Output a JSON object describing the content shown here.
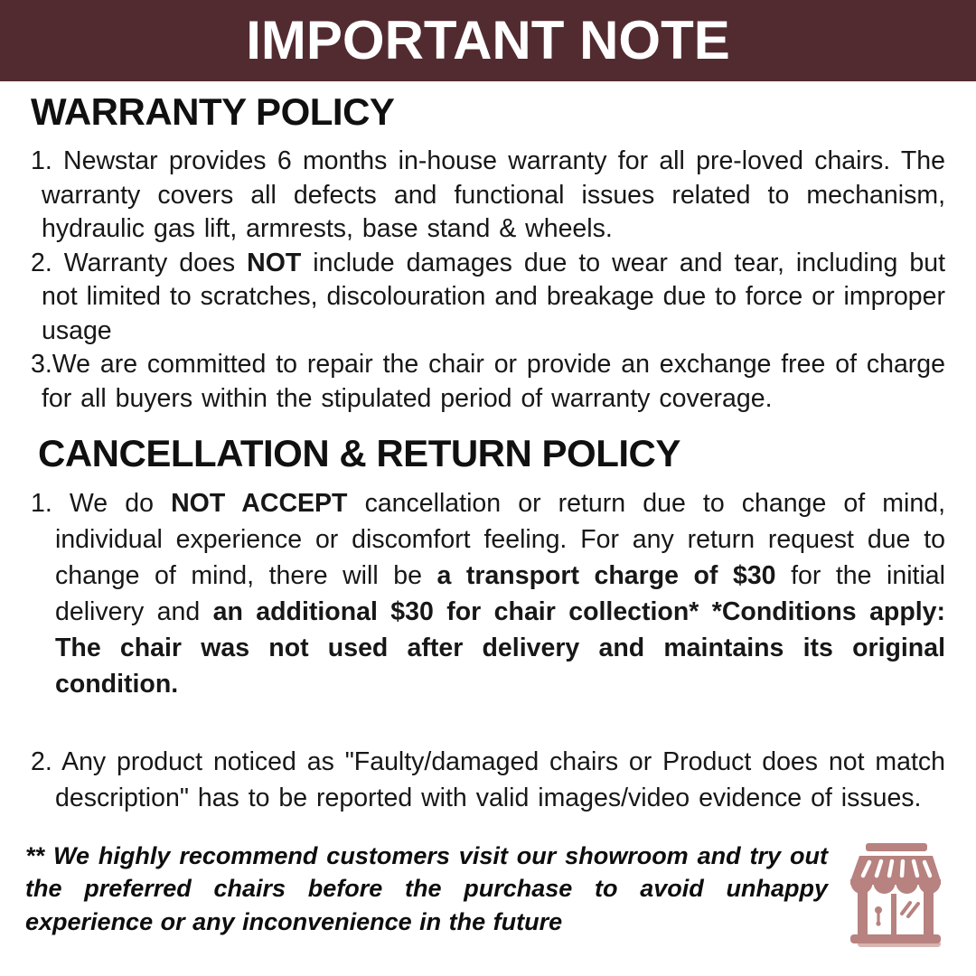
{
  "colors": {
    "banner_bg": "#522b30",
    "banner_text": "#ffffff",
    "body_text": "#171717",
    "icon_rose": "#b7827f",
    "icon_rose_light": "#d9b4b0"
  },
  "banner": {
    "title": "IMPORTANT NOTE"
  },
  "warranty": {
    "heading": "WARRANTY POLICY",
    "items": [
      {
        "number": "1. ",
        "segments": [
          {
            "text": "Newstar provides 6 months in-house warranty for all pre-loved chairs. The warranty covers all defects and functional issues related to mechanism, hydraulic gas lift, armrests, base stand & wheels.",
            "bold": false
          }
        ]
      },
      {
        "number": "2. ",
        "segments": [
          {
            "text": "Warranty does ",
            "bold": false
          },
          {
            "text": "NOT",
            "bold": true
          },
          {
            "text": " include damages due to wear and tear, including but not limited to scratches, discolouration and breakage due to force or improper usage",
            "bold": false
          }
        ]
      },
      {
        "number": "3.",
        "segments": [
          {
            "text": "We are committed to repair the chair or provide an exchange free of charge for all buyers within the stipulated period of warranty coverage.",
            "bold": false
          }
        ]
      }
    ]
  },
  "cancellation": {
    "heading": "CANCELLATION & RETURN POLICY",
    "items": [
      {
        "number": "1. ",
        "segments": [
          {
            "text": "We do ",
            "bold": false
          },
          {
            "text": "NOT ACCEPT",
            "bold": true
          },
          {
            "text": " cancellation or return due to change of mind, individual experience or discomfort feeling. For any return request due to change of mind, there will be ",
            "bold": false
          },
          {
            "text": "a transport charge of $30",
            "bold": true
          },
          {
            "text": " for the initial delivery and ",
            "bold": false
          },
          {
            "text": "an additional $30 for chair collection* *Conditions apply: The chair was not used after delivery and maintains its original condition.",
            "bold": true
          }
        ]
      },
      {
        "number": "2. ",
        "segments": [
          {
            "text": "Any product noticed as \"Faulty/damaged chairs or Product does not match description\" has to be reported with valid images/video evidence of issues.",
            "bold": false
          }
        ]
      }
    ]
  },
  "footer": {
    "note": "** We highly recommend customers visit our showroom and try out the preferred chairs before the purchase to avoid unhappy experience or any inconvenience in the future",
    "icon": "storefront-icon"
  }
}
